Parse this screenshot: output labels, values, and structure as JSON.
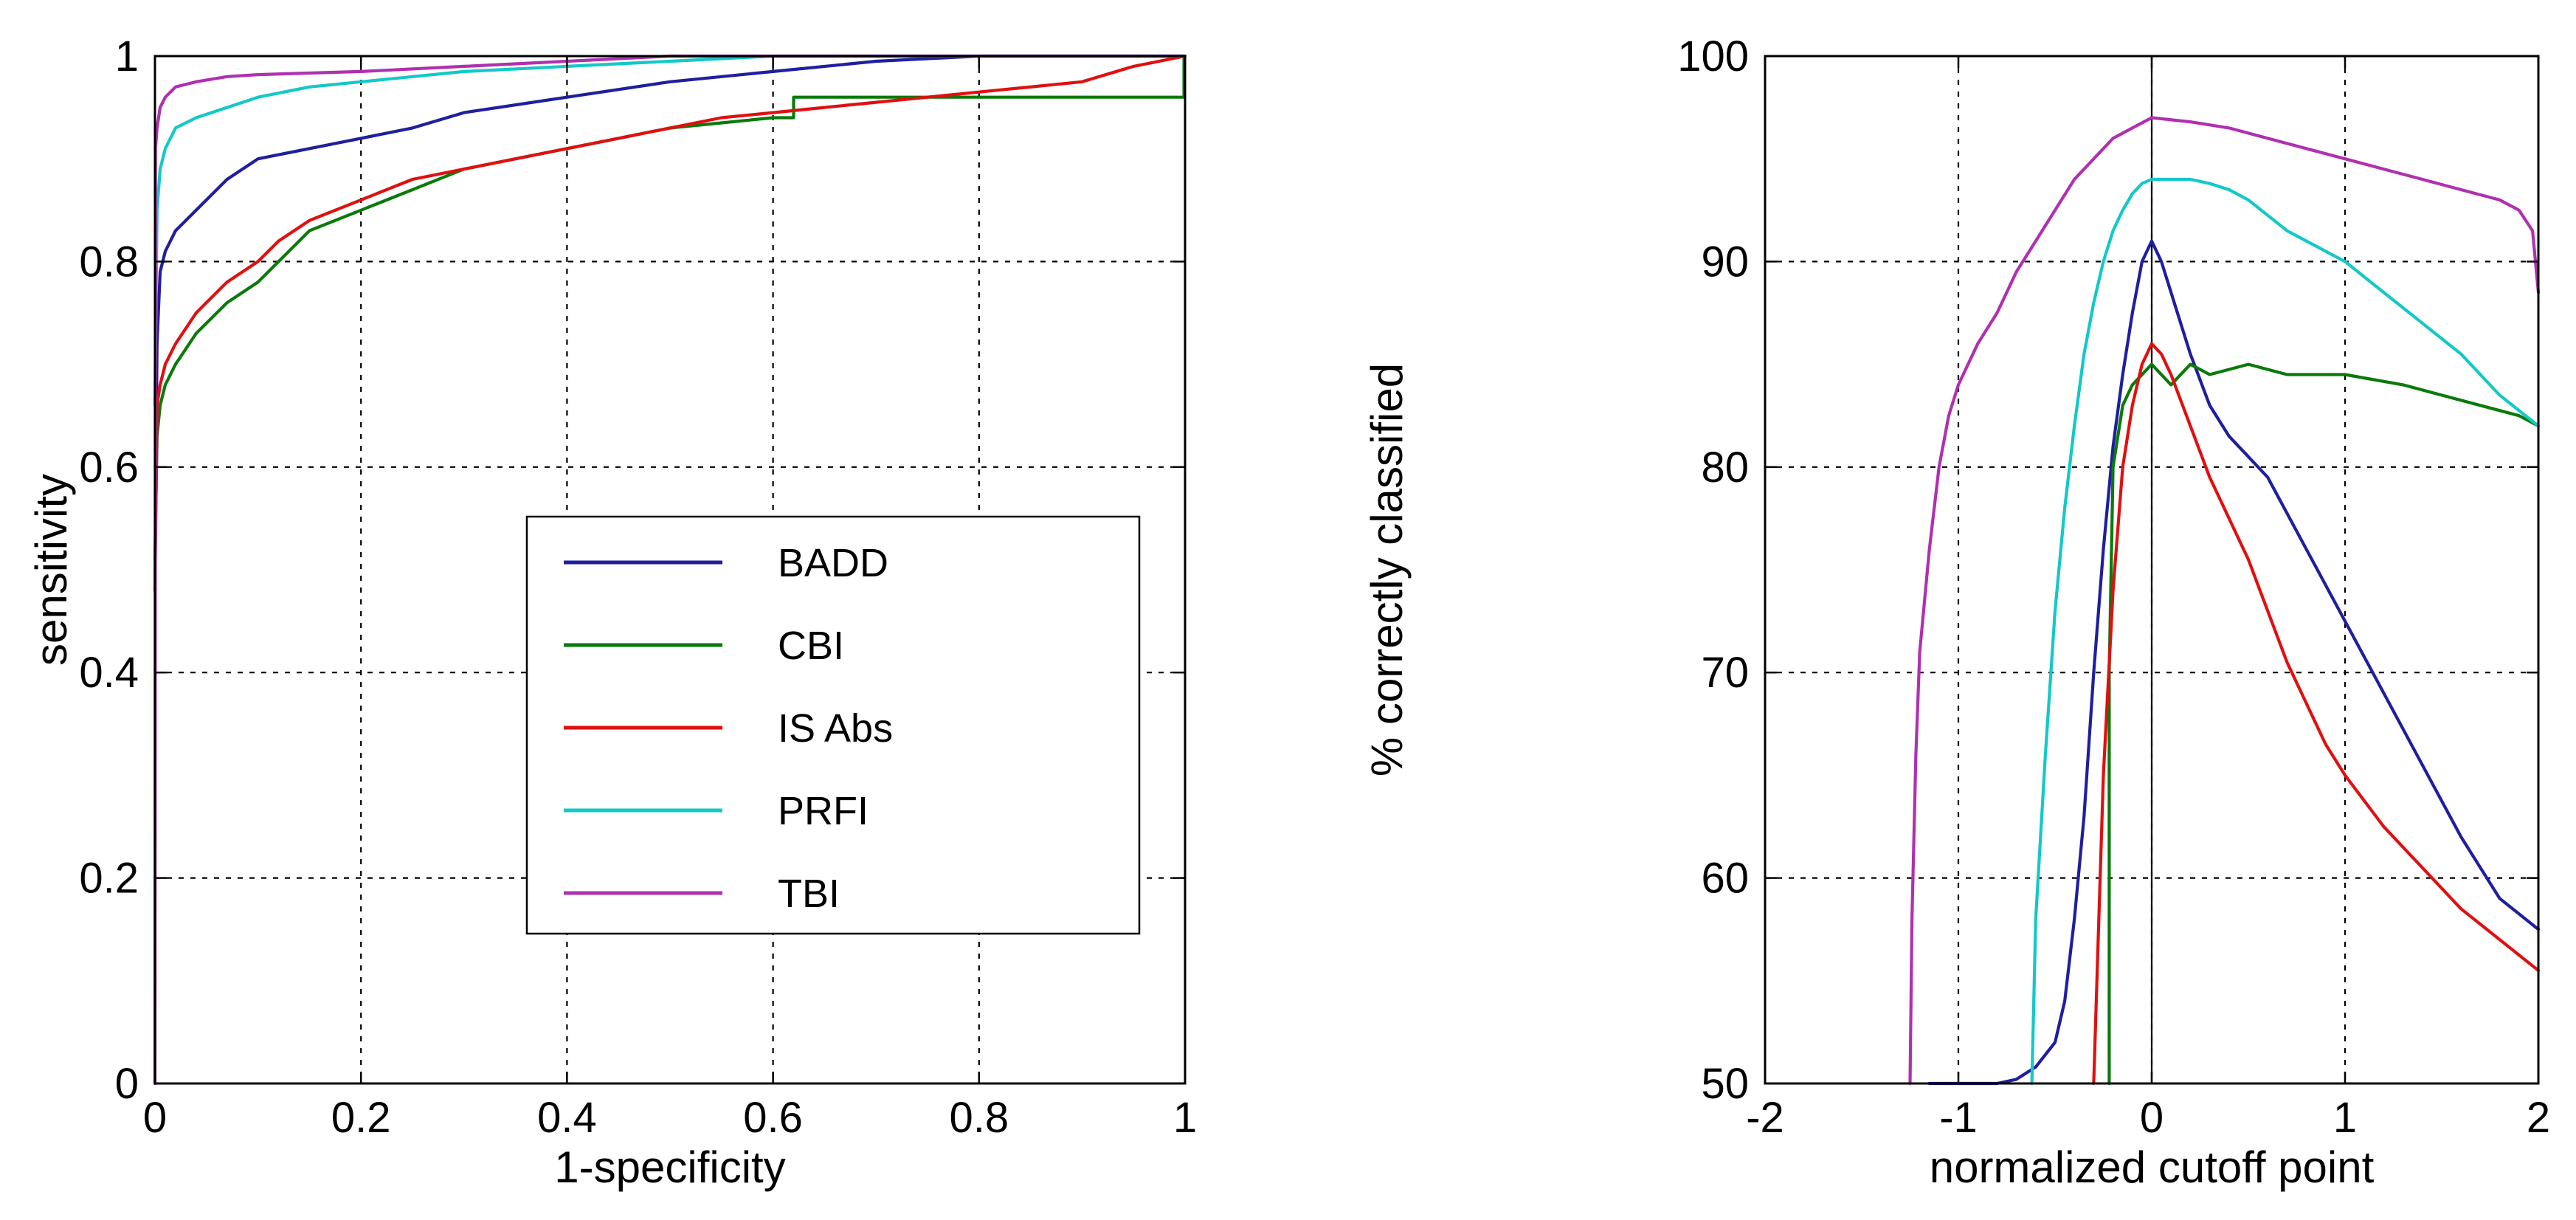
{
  "chart_data": [
    {
      "type": "line",
      "id": "roc",
      "title": "",
      "xlabel": "1-specificity",
      "ylabel": "sensitivity",
      "xlim": [
        0,
        1
      ],
      "ylim": [
        0,
        1
      ],
      "grid": true,
      "xticks": [
        "0",
        "0.2",
        "0.4",
        "0.6",
        "0.8",
        "1"
      ],
      "yticks": [
        "0",
        "0.2",
        "0.4",
        "0.6",
        "0.8",
        "1"
      ],
      "xtickvals": [
        0,
        0.2,
        0.4,
        0.6,
        0.8,
        1
      ],
      "ytickvals": [
        0,
        0.2,
        0.4,
        0.6,
        0.8,
        1
      ],
      "legend": {
        "placement": "center-right",
        "entries": [
          "BADD",
          "CBI",
          "IS Abs",
          "PRFI",
          "TBI"
        ]
      },
      "series": [
        {
          "name": "BADD",
          "color": "#1f1f9e",
          "x": [
            0,
            0.002,
            0.005,
            0.01,
            0.02,
            0.04,
            0.07,
            0.1,
            0.15,
            0.2,
            0.25,
            0.3,
            0.4,
            0.5,
            0.6,
            0.7,
            0.8,
            0.9,
            1
          ],
          "y": [
            0.48,
            0.72,
            0.79,
            0.81,
            0.83,
            0.85,
            0.88,
            0.9,
            0.91,
            0.92,
            0.93,
            0.945,
            0.96,
            0.975,
            0.985,
            0.995,
            1,
            1,
            1
          ]
        },
        {
          "name": "CBI",
          "color": "#0a7a0a",
          "x": [
            0,
            0.002,
            0.005,
            0.01,
            0.02,
            0.04,
            0.07,
            0.1,
            0.12,
            0.15,
            0.2,
            0.25,
            0.3,
            0.35,
            0.4,
            0.45,
            0.5,
            0.55,
            0.6,
            0.62,
            0.62,
            0.7,
            0.8,
            0.9,
            0.999,
            0.999,
            1
          ],
          "y": [
            0.51,
            0.63,
            0.66,
            0.68,
            0.7,
            0.73,
            0.76,
            0.78,
            0.8,
            0.83,
            0.85,
            0.87,
            0.89,
            0.9,
            0.91,
            0.92,
            0.93,
            0.935,
            0.94,
            0.94,
            0.96,
            0.96,
            0.96,
            0.96,
            0.96,
            1,
            1
          ]
        },
        {
          "name": "IS Abs",
          "color": "#e01010",
          "x": [
            0,
            0.002,
            0.005,
            0.01,
            0.02,
            0.04,
            0.07,
            0.1,
            0.12,
            0.15,
            0.2,
            0.25,
            0.3,
            0.35,
            0.4,
            0.45,
            0.5,
            0.55,
            0.6,
            0.65,
            0.7,
            0.8,
            0.9,
            0.95,
            1
          ],
          "y": [
            0.48,
            0.66,
            0.68,
            0.7,
            0.72,
            0.75,
            0.78,
            0.8,
            0.82,
            0.84,
            0.86,
            0.88,
            0.89,
            0.9,
            0.91,
            0.92,
            0.93,
            0.94,
            0.945,
            0.95,
            0.955,
            0.965,
            0.975,
            0.99,
            1
          ]
        },
        {
          "name": "PRFI",
          "color": "#14c8c8",
          "x": [
            0,
            0.002,
            0.005,
            0.01,
            0.02,
            0.04,
            0.07,
            0.1,
            0.15,
            0.2,
            0.3,
            0.4,
            0.5,
            0.6,
            0.8,
            1
          ],
          "y": [
            0.66,
            0.85,
            0.89,
            0.91,
            0.93,
            0.94,
            0.95,
            0.96,
            0.97,
            0.975,
            0.985,
            0.99,
            0.995,
            1,
            1,
            1
          ]
        },
        {
          "name": "TBI",
          "color": "#b030b0",
          "x": [
            0,
            0.0005,
            0.002,
            0.005,
            0.01,
            0.02,
            0.04,
            0.07,
            0.1,
            0.2,
            0.3,
            0.4,
            0.5,
            0.7,
            1
          ],
          "y": [
            0,
            0.91,
            0.93,
            0.95,
            0.96,
            0.97,
            0.975,
            0.98,
            0.982,
            0.985,
            0.99,
            0.995,
            1,
            1,
            1
          ]
        }
      ]
    },
    {
      "type": "line",
      "id": "cutoff",
      "title": "",
      "xlabel": "normalized cutoff point",
      "ylabel": "% correctly classified",
      "xlim": [
        -2,
        2
      ],
      "ylim": [
        50,
        100
      ],
      "grid": true,
      "xticks": [
        "-2",
        "-1",
        "0",
        "1",
        "2"
      ],
      "yticks": [
        "50",
        "60",
        "70",
        "80",
        "90",
        "100"
      ],
      "xtickvals": [
        -2,
        -1,
        0,
        1,
        2
      ],
      "ytickvals": [
        50,
        60,
        70,
        80,
        90,
        100
      ],
      "vline_at": 0,
      "series": [
        {
          "name": "BADD",
          "color": "#1f1f9e",
          "x": [
            -1.15,
            -0.8,
            -0.7,
            -0.6,
            -0.5,
            -0.45,
            -0.4,
            -0.35,
            -0.3,
            -0.25,
            -0.2,
            -0.15,
            -0.1,
            -0.05,
            0,
            0.05,
            0.1,
            0.2,
            0.3,
            0.4,
            0.6,
            0.8,
            1,
            1.2,
            1.4,
            1.6,
            1.8,
            2
          ],
          "y": [
            50,
            50,
            50.2,
            50.8,
            52,
            54,
            58,
            63,
            70,
            76,
            81,
            84.5,
            87.5,
            90,
            91,
            90,
            88.5,
            85.5,
            83,
            81.5,
            79.5,
            76,
            72.5,
            69,
            65.5,
            62,
            59,
            57.5
          ]
        },
        {
          "name": "CBI",
          "color": "#0a7a0a",
          "x": [
            -0.22,
            -0.22,
            -0.2,
            -0.15,
            -0.1,
            -0.05,
            0,
            0.05,
            0.1,
            0.2,
            0.3,
            0.5,
            0.7,
            1,
            1.3,
            1.5,
            1.7,
            1.9,
            2
          ],
          "y": [
            50,
            70,
            80,
            83,
            84,
            84.5,
            85,
            84.5,
            84,
            85,
            84.5,
            85,
            84.5,
            84.5,
            84,
            83.5,
            83,
            82.5,
            82
          ]
        },
        {
          "name": "IS Abs",
          "color": "#e01010",
          "x": [
            -0.3,
            -0.28,
            -0.25,
            -0.2,
            -0.15,
            -0.1,
            -0.05,
            0,
            0.05,
            0.1,
            0.2,
            0.3,
            0.4,
            0.5,
            0.6,
            0.7,
            0.8,
            0.9,
            1,
            1.2,
            1.4,
            1.6,
            1.8,
            2
          ],
          "y": [
            50,
            56,
            65,
            74,
            80,
            83,
            85,
            86,
            85.5,
            84.5,
            82,
            79.5,
            77.5,
            75.5,
            73,
            70.5,
            68.5,
            66.5,
            65,
            62.5,
            60.5,
            58.5,
            57,
            55.5
          ]
        },
        {
          "name": "PRFI",
          "color": "#14c8c8",
          "x": [
            -0.62,
            -0.6,
            -0.55,
            -0.5,
            -0.45,
            -0.4,
            -0.35,
            -0.3,
            -0.25,
            -0.2,
            -0.15,
            -0.1,
            -0.05,
            0,
            0.1,
            0.2,
            0.3,
            0.4,
            0.5,
            0.7,
            0.9,
            1,
            1.2,
            1.4,
            1.6,
            1.8,
            2
          ],
          "y": [
            50,
            58,
            66,
            73,
            78,
            82,
            85.5,
            88,
            90,
            91.5,
            92.5,
            93.3,
            93.8,
            94,
            94,
            94,
            93.8,
            93.5,
            93,
            91.5,
            90.5,
            90,
            88.5,
            87,
            85.5,
            83.5,
            82
          ]
        },
        {
          "name": "TBI",
          "color": "#b030b0",
          "x": [
            -1.25,
            -1.24,
            -1.22,
            -1.2,
            -1.15,
            -1.1,
            -1.05,
            -1,
            -0.9,
            -0.8,
            -0.7,
            -0.6,
            -0.5,
            -0.4,
            -0.3,
            -0.2,
            -0.1,
            0,
            0.2,
            0.4,
            0.6,
            0.8,
            1,
            1.2,
            1.4,
            1.6,
            1.8,
            1.9,
            1.97,
            2
          ],
          "y": [
            50,
            58,
            66,
            71,
            76,
            80,
            82.5,
            84,
            86,
            87.5,
            89.5,
            91,
            92.5,
            94,
            95,
            96,
            96.5,
            97,
            96.8,
            96.5,
            96,
            95.5,
            95,
            94.5,
            94,
            93.5,
            93,
            92.5,
            91.5,
            88.5
          ]
        }
      ]
    }
  ]
}
